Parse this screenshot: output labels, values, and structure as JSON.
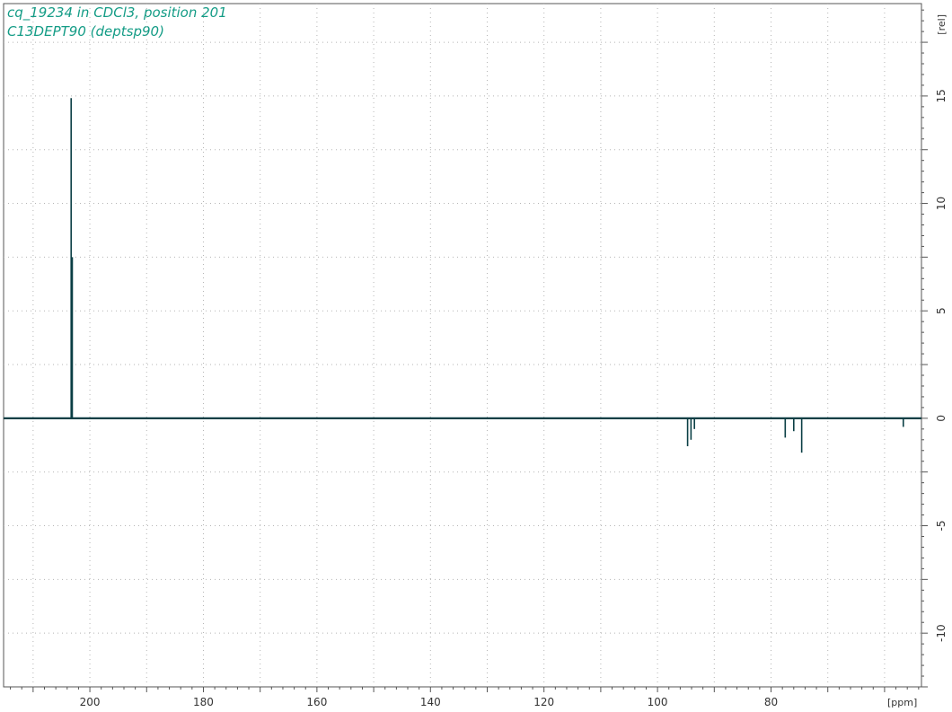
{
  "title_lines": [
    "cq_19234 in CDCl3, position 201",
    "C13DEPT90 (deptsp90)"
  ],
  "colors": {
    "title": "#149c86",
    "spectrum": "#0b3f45",
    "grid": "#b5b5b5",
    "axis": "#555555"
  },
  "chart_data": {
    "type": "line",
    "title": "",
    "xlabel": "[ppm]",
    "ylabel": "[rel]",
    "xlim": [
      215.2,
      53.5
    ],
    "ylim": [
      -12.5,
      19.3
    ],
    "x_reversed": true,
    "grid": true,
    "x_ticks": [
      200,
      180,
      160,
      140,
      120,
      100,
      80
    ],
    "x_tick_labels": [
      "200",
      "180",
      "160",
      "140",
      "120",
      "100",
      "80"
    ],
    "y_ticks": [
      15,
      10,
      5,
      0,
      -5,
      -10
    ],
    "y_tick_labels": [
      "15",
      "10",
      "5",
      "0",
      "-5",
      "-10"
    ],
    "baseline": 0,
    "peaks": [
      {
        "x": 203.3,
        "y": 14.9
      },
      {
        "x": 203.1,
        "y": 7.5
      },
      {
        "x": 94.7,
        "y": -1.3
      },
      {
        "x": 94.1,
        "y": -1.0
      },
      {
        "x": 93.5,
        "y": -0.5
      },
      {
        "x": 77.5,
        "y": -0.9
      },
      {
        "x": 76.0,
        "y": -0.6
      },
      {
        "x": 74.6,
        "y": -1.6
      },
      {
        "x": 56.7,
        "y": -0.4
      }
    ]
  }
}
